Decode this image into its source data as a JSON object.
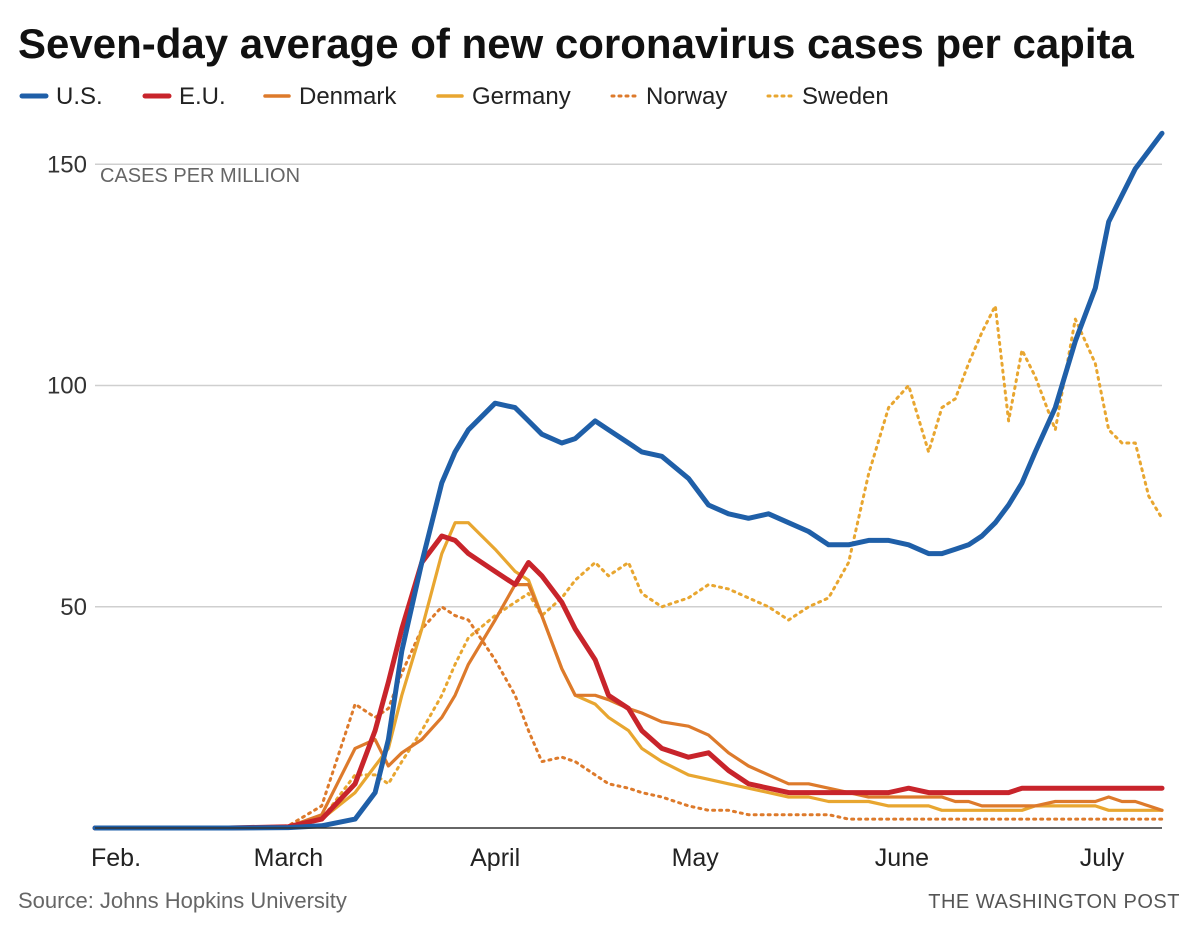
{
  "title": "Seven-day average of new coronavirus cases per capita",
  "source": "Source: Johns Hopkins University",
  "credit": "THE WASHINGTON POST",
  "colors": {
    "us": "#1f5fa8",
    "eu": "#c8242b",
    "denmark": "#dd7a2b",
    "germany": "#e8a630",
    "norway": "#dd7a2b",
    "sweden": "#e8a630"
  },
  "chart_data": {
    "type": "line",
    "x": [
      "Feb. 1",
      "Feb. 21",
      "Mar. 1",
      "Mar. 6",
      "Mar. 11",
      "Mar. 14",
      "Mar. 16",
      "Mar. 18",
      "Mar. 21",
      "Mar. 24",
      "Mar. 26",
      "Mar. 28",
      "Apr. 1",
      "Apr. 4",
      "Apr. 6",
      "Apr. 8",
      "Apr. 11",
      "Apr. 13",
      "Apr. 16",
      "Apr. 18",
      "Apr. 21",
      "Apr. 23",
      "Apr. 26",
      "Apr. 30",
      "May 3",
      "May 6",
      "May 9",
      "May 12",
      "May 15",
      "May 18",
      "May 21",
      "May 24",
      "May 27",
      "May 30",
      "Jun. 2",
      "Jun. 5",
      "Jun. 7",
      "Jun. 9",
      "Jun. 11",
      "Jun. 13",
      "Jun. 15",
      "Jun. 17",
      "Jun. 19",
      "Jun. 21",
      "Jun. 24",
      "Jun. 27",
      "Jun. 30",
      "Jul. 2",
      "Jul. 4",
      "Jul. 6",
      "Jul. 8",
      "Jul. 10"
    ],
    "series": [
      {
        "name": "U.S.",
        "key": "us",
        "style": "solid",
        "values": [
          0,
          0,
          0.1,
          0.5,
          2,
          8,
          20,
          40,
          60,
          78,
          85,
          90,
          96,
          95,
          92,
          89,
          87,
          88,
          92,
          90,
          87,
          85,
          84,
          79,
          73,
          71,
          70,
          71,
          69,
          67,
          64,
          64,
          65,
          65,
          64,
          62,
          62,
          63,
          64,
          66,
          69,
          73,
          78,
          85,
          95,
          110,
          122,
          137,
          143,
          149,
          153,
          157
        ]
      },
      {
        "name": "E.U.",
        "key": "eu",
        "style": "solid",
        "values": [
          0,
          0,
          0.3,
          2,
          10,
          22,
          33,
          45,
          60,
          66,
          65,
          62,
          58,
          55,
          60,
          57,
          51,
          45,
          38,
          30,
          27,
          22,
          18,
          16,
          17,
          13,
          10,
          9,
          8,
          8,
          8,
          8,
          8,
          8,
          9,
          8,
          8,
          8,
          8,
          8,
          8,
          8,
          9,
          9,
          9,
          9,
          9,
          9,
          9,
          9,
          9,
          9
        ]
      },
      {
        "name": "Denmark",
        "key": "denmark",
        "style": "solid",
        "values": [
          0,
          0,
          0.3,
          3,
          18,
          20,
          14,
          17,
          20,
          25,
          30,
          37,
          47,
          55,
          55,
          48,
          36,
          30,
          30,
          29,
          27,
          26,
          24,
          23,
          21,
          17,
          14,
          12,
          10,
          10,
          9,
          8,
          7,
          7,
          7,
          7,
          7,
          6,
          6,
          5,
          5,
          5,
          5,
          5,
          6,
          6,
          6,
          7,
          6,
          6,
          5,
          4
        ]
      },
      {
        "name": "Germany",
        "key": "germany",
        "style": "solid",
        "values": [
          0,
          0,
          0.2,
          2,
          8,
          14,
          18,
          30,
          45,
          62,
          69,
          69,
          63,
          58,
          56,
          48,
          36,
          30,
          28,
          25,
          22,
          18,
          15,
          12,
          11,
          10,
          9,
          8,
          7,
          7,
          6,
          6,
          6,
          5,
          5,
          5,
          4,
          4,
          4,
          4,
          4,
          4,
          4,
          5,
          5,
          5,
          5,
          4,
          4,
          4,
          4,
          4
        ]
      },
      {
        "name": "Norway",
        "key": "norway",
        "style": "dotted",
        "values": [
          0,
          0,
          0.5,
          5,
          28,
          25,
          27,
          35,
          45,
          50,
          48,
          47,
          38,
          30,
          22,
          15,
          16,
          15,
          12,
          10,
          9,
          8,
          7,
          5,
          4,
          4,
          3,
          3,
          3,
          3,
          3,
          2,
          2,
          2,
          2,
          2,
          2,
          2,
          2,
          2,
          2,
          2,
          2,
          2,
          2,
          2,
          2,
          2,
          2,
          2,
          2,
          2
        ]
      },
      {
        "name": "Sweden",
        "key": "sweden",
        "style": "dotted",
        "values": [
          0,
          0,
          0.3,
          2,
          12,
          12,
          10,
          15,
          22,
          30,
          37,
          43,
          48,
          51,
          53,
          48,
          52,
          56,
          60,
          57,
          60,
          53,
          50,
          52,
          55,
          54,
          52,
          50,
          47,
          50,
          52,
          60,
          80,
          95,
          100,
          85,
          95,
          97,
          105,
          112,
          118,
          92,
          108,
          102,
          90,
          115,
          105,
          90,
          87,
          87,
          75,
          70
        ]
      }
    ],
    "x_ticks": [
      "Feb.",
      "March",
      "April",
      "May",
      "June",
      "July"
    ],
    "y_ticks": [
      50,
      100,
      150
    ],
    "ylim": [
      0,
      160
    ],
    "ylabel": "CASES PER MILLION",
    "grid": true,
    "legend_position": "top"
  }
}
